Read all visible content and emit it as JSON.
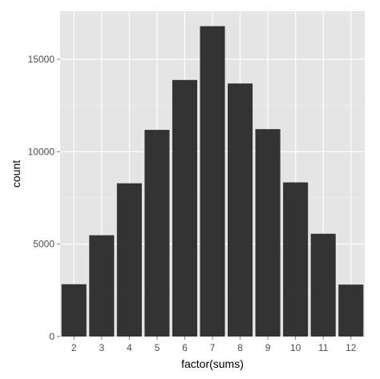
{
  "chart_data": {
    "type": "bar",
    "title": "",
    "xlabel": "factor(sums)",
    "ylabel": "count",
    "categories": [
      "2",
      "3",
      "4",
      "5",
      "6",
      "7",
      "8",
      "9",
      "10",
      "11",
      "12"
    ],
    "values": [
      2830,
      5480,
      8290,
      11180,
      13880,
      16790,
      13690,
      11220,
      8340,
      5560,
      2810
    ],
    "ylim": [
      0,
      17600
    ],
    "yticks": [
      0,
      5000,
      10000,
      15000
    ],
    "ytick_labels": [
      "0",
      "5000",
      "10000",
      "15000"
    ],
    "grid": true,
    "legend": "none",
    "colors": {
      "panel_background": "#e5e5e5",
      "grid_major": "#ffffff",
      "grid_minor": "#f2f2f2",
      "bar_fill": "#333333",
      "tick_color": "#7f7f7f",
      "tick_label_color": "#4d4d4d"
    }
  }
}
